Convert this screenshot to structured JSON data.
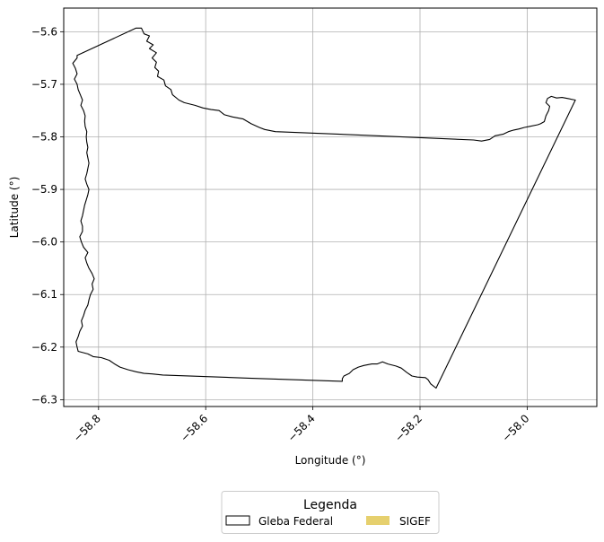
{
  "chart_data": {
    "type": "map",
    "xlabel": "Longitude (°)",
    "ylabel": "Latitude (°)",
    "xlim": [
      -58.865,
      -57.87
    ],
    "ylim": [
      -6.313,
      -5.555
    ],
    "grid": true,
    "x_ticks": [
      {
        "value": -58.8,
        "label": "−58.8"
      },
      {
        "value": -58.6,
        "label": "−58.6"
      },
      {
        "value": -58.4,
        "label": "−58.4"
      },
      {
        "value": -58.2,
        "label": "−58.2"
      },
      {
        "value": -58.0,
        "label": "−58.0"
      }
    ],
    "y_ticks": [
      {
        "value": -5.6,
        "label": "−5.6"
      },
      {
        "value": -5.7,
        "label": "−5.7"
      },
      {
        "value": -5.8,
        "label": "−5.8"
      },
      {
        "value": -5.9,
        "label": "−5.9"
      },
      {
        "value": -6.0,
        "label": "−6.0"
      },
      {
        "value": -6.1,
        "label": "−6.1"
      },
      {
        "value": -6.2,
        "label": "−6.2"
      },
      {
        "value": -6.3,
        "label": "−6.3"
      }
    ],
    "legend": {
      "title": "Legenda",
      "placement": "bottom-center",
      "entries": [
        {
          "label": "Gleba Federal",
          "style": "outline",
          "edge_color": "#000000",
          "fill": "none"
        },
        {
          "label": "SIGEF",
          "style": "filled",
          "fill": "#e6d06e"
        }
      ]
    },
    "series": [
      {
        "name": "Gleba Federal",
        "geometry": "polygon",
        "stroke": "#000000",
        "coordinates": [
          [
            -58.84,
            -5.645
          ],
          [
            -58.73,
            -5.593
          ],
          [
            -58.72,
            -5.593
          ],
          [
            -58.715,
            -5.604
          ],
          [
            -58.705,
            -5.608
          ],
          [
            -58.71,
            -5.618
          ],
          [
            -58.698,
            -5.625
          ],
          [
            -58.705,
            -5.632
          ],
          [
            -58.692,
            -5.64
          ],
          [
            -58.7,
            -5.65
          ],
          [
            -58.692,
            -5.658
          ],
          [
            -58.695,
            -5.668
          ],
          [
            -58.688,
            -5.675
          ],
          [
            -58.69,
            -5.685
          ],
          [
            -58.678,
            -5.692
          ],
          [
            -58.675,
            -5.703
          ],
          [
            -58.665,
            -5.71
          ],
          [
            -58.662,
            -5.72
          ],
          [
            -58.65,
            -5.73
          ],
          [
            -58.64,
            -5.735
          ],
          [
            -58.62,
            -5.74
          ],
          [
            -58.605,
            -5.745
          ],
          [
            -58.59,
            -5.748
          ],
          [
            -58.575,
            -5.75
          ],
          [
            -58.565,
            -5.758
          ],
          [
            -58.55,
            -5.762
          ],
          [
            -58.53,
            -5.766
          ],
          [
            -58.515,
            -5.775
          ],
          [
            -58.5,
            -5.782
          ],
          [
            -58.49,
            -5.786
          ],
          [
            -58.47,
            -5.79
          ],
          [
            -58.3,
            -5.797
          ],
          [
            -58.1,
            -5.806
          ],
          [
            -58.085,
            -5.808
          ],
          [
            -58.07,
            -5.805
          ],
          [
            -58.06,
            -5.798
          ],
          [
            -58.045,
            -5.795
          ],
          [
            -58.035,
            -5.79
          ],
          [
            -58.025,
            -5.787
          ],
          [
            -58.015,
            -5.785
          ],
          [
            -58.005,
            -5.782
          ],
          [
            -57.995,
            -5.78
          ],
          [
            -57.98,
            -5.777
          ],
          [
            -57.975,
            -5.775
          ],
          [
            -57.968,
            -5.771
          ],
          [
            -57.965,
            -5.76
          ],
          [
            -57.96,
            -5.75
          ],
          [
            -57.958,
            -5.742
          ],
          [
            -57.965,
            -5.735
          ],
          [
            -57.962,
            -5.727
          ],
          [
            -57.955,
            -5.723
          ],
          [
            -57.945,
            -5.726
          ],
          [
            -57.935,
            -5.725
          ],
          [
            -57.925,
            -5.727
          ],
          [
            -57.91,
            -5.73
          ],
          [
            -58.17,
            -6.278
          ],
          [
            -58.18,
            -6.27
          ],
          [
            -58.185,
            -6.262
          ],
          [
            -58.19,
            -6.258
          ],
          [
            -58.205,
            -6.257
          ],
          [
            -58.215,
            -6.255
          ],
          [
            -58.225,
            -6.248
          ],
          [
            -58.235,
            -6.24
          ],
          [
            -58.245,
            -6.236
          ],
          [
            -58.26,
            -6.232
          ],
          [
            -58.27,
            -6.228
          ],
          [
            -58.28,
            -6.232
          ],
          [
            -58.29,
            -6.232
          ],
          [
            -58.305,
            -6.235
          ],
          [
            -58.315,
            -6.238
          ],
          [
            -58.325,
            -6.243
          ],
          [
            -58.332,
            -6.25
          ],
          [
            -58.342,
            -6.255
          ],
          [
            -58.345,
            -6.26
          ],
          [
            -58.345,
            -6.265
          ],
          [
            -58.52,
            -6.259
          ],
          [
            -58.68,
            -6.253
          ],
          [
            -58.7,
            -6.251
          ],
          [
            -58.715,
            -6.25
          ],
          [
            -58.73,
            -6.247
          ],
          [
            -58.745,
            -6.243
          ],
          [
            -58.76,
            -6.238
          ],
          [
            -58.77,
            -6.232
          ],
          [
            -58.78,
            -6.225
          ],
          [
            -58.795,
            -6.22
          ],
          [
            -58.81,
            -6.218
          ],
          [
            -58.82,
            -6.213
          ],
          [
            -58.838,
            -6.208
          ],
          [
            -58.84,
            -6.2
          ],
          [
            -58.842,
            -6.19
          ],
          [
            -58.838,
            -6.18
          ],
          [
            -58.835,
            -6.17
          ],
          [
            -58.83,
            -6.16
          ],
          [
            -58.832,
            -6.15
          ],
          [
            -58.828,
            -6.14
          ],
          [
            -58.825,
            -6.13
          ],
          [
            -58.82,
            -6.12
          ],
          [
            -58.818,
            -6.11
          ],
          [
            -58.815,
            -6.1
          ],
          [
            -58.81,
            -6.09
          ],
          [
            -58.812,
            -6.08
          ],
          [
            -58.808,
            -6.07
          ],
          [
            -58.812,
            -6.06
          ],
          [
            -58.818,
            -6.05
          ],
          [
            -58.822,
            -6.04
          ],
          [
            -58.825,
            -6.03
          ],
          [
            -58.82,
            -6.02
          ],
          [
            -58.828,
            -6.01
          ],
          [
            -58.832,
            -6.0
          ],
          [
            -58.835,
            -5.99
          ],
          [
            -58.83,
            -5.98
          ],
          [
            -58.83,
            -5.97
          ],
          [
            -58.833,
            -5.96
          ],
          [
            -58.83,
            -5.95
          ],
          [
            -58.828,
            -5.94
          ],
          [
            -58.826,
            -5.93
          ],
          [
            -58.823,
            -5.92
          ],
          [
            -58.82,
            -5.91
          ],
          [
            -58.818,
            -5.9
          ],
          [
            -58.822,
            -5.89
          ],
          [
            -58.825,
            -5.88
          ],
          [
            -58.822,
            -5.87
          ],
          [
            -58.82,
            -5.86
          ],
          [
            -58.818,
            -5.85
          ],
          [
            -58.82,
            -5.84
          ],
          [
            -58.822,
            -5.83
          ],
          [
            -58.82,
            -5.82
          ],
          [
            -58.822,
            -5.81
          ],
          [
            -58.823,
            -5.8
          ],
          [
            -58.822,
            -5.79
          ],
          [
            -58.825,
            -5.78
          ],
          [
            -58.826,
            -5.77
          ],
          [
            -58.825,
            -5.76
          ],
          [
            -58.828,
            -5.75
          ],
          [
            -58.833,
            -5.74
          ],
          [
            -58.83,
            -5.73
          ],
          [
            -58.834,
            -5.72
          ],
          [
            -58.838,
            -5.71
          ],
          [
            -58.84,
            -5.7
          ],
          [
            -58.845,
            -5.69
          ],
          [
            -58.84,
            -5.68
          ],
          [
            -58.843,
            -5.67
          ],
          [
            -58.848,
            -5.66
          ],
          [
            -58.84,
            -5.65
          ],
          [
            -58.84,
            -5.645
          ]
        ]
      }
    ]
  }
}
